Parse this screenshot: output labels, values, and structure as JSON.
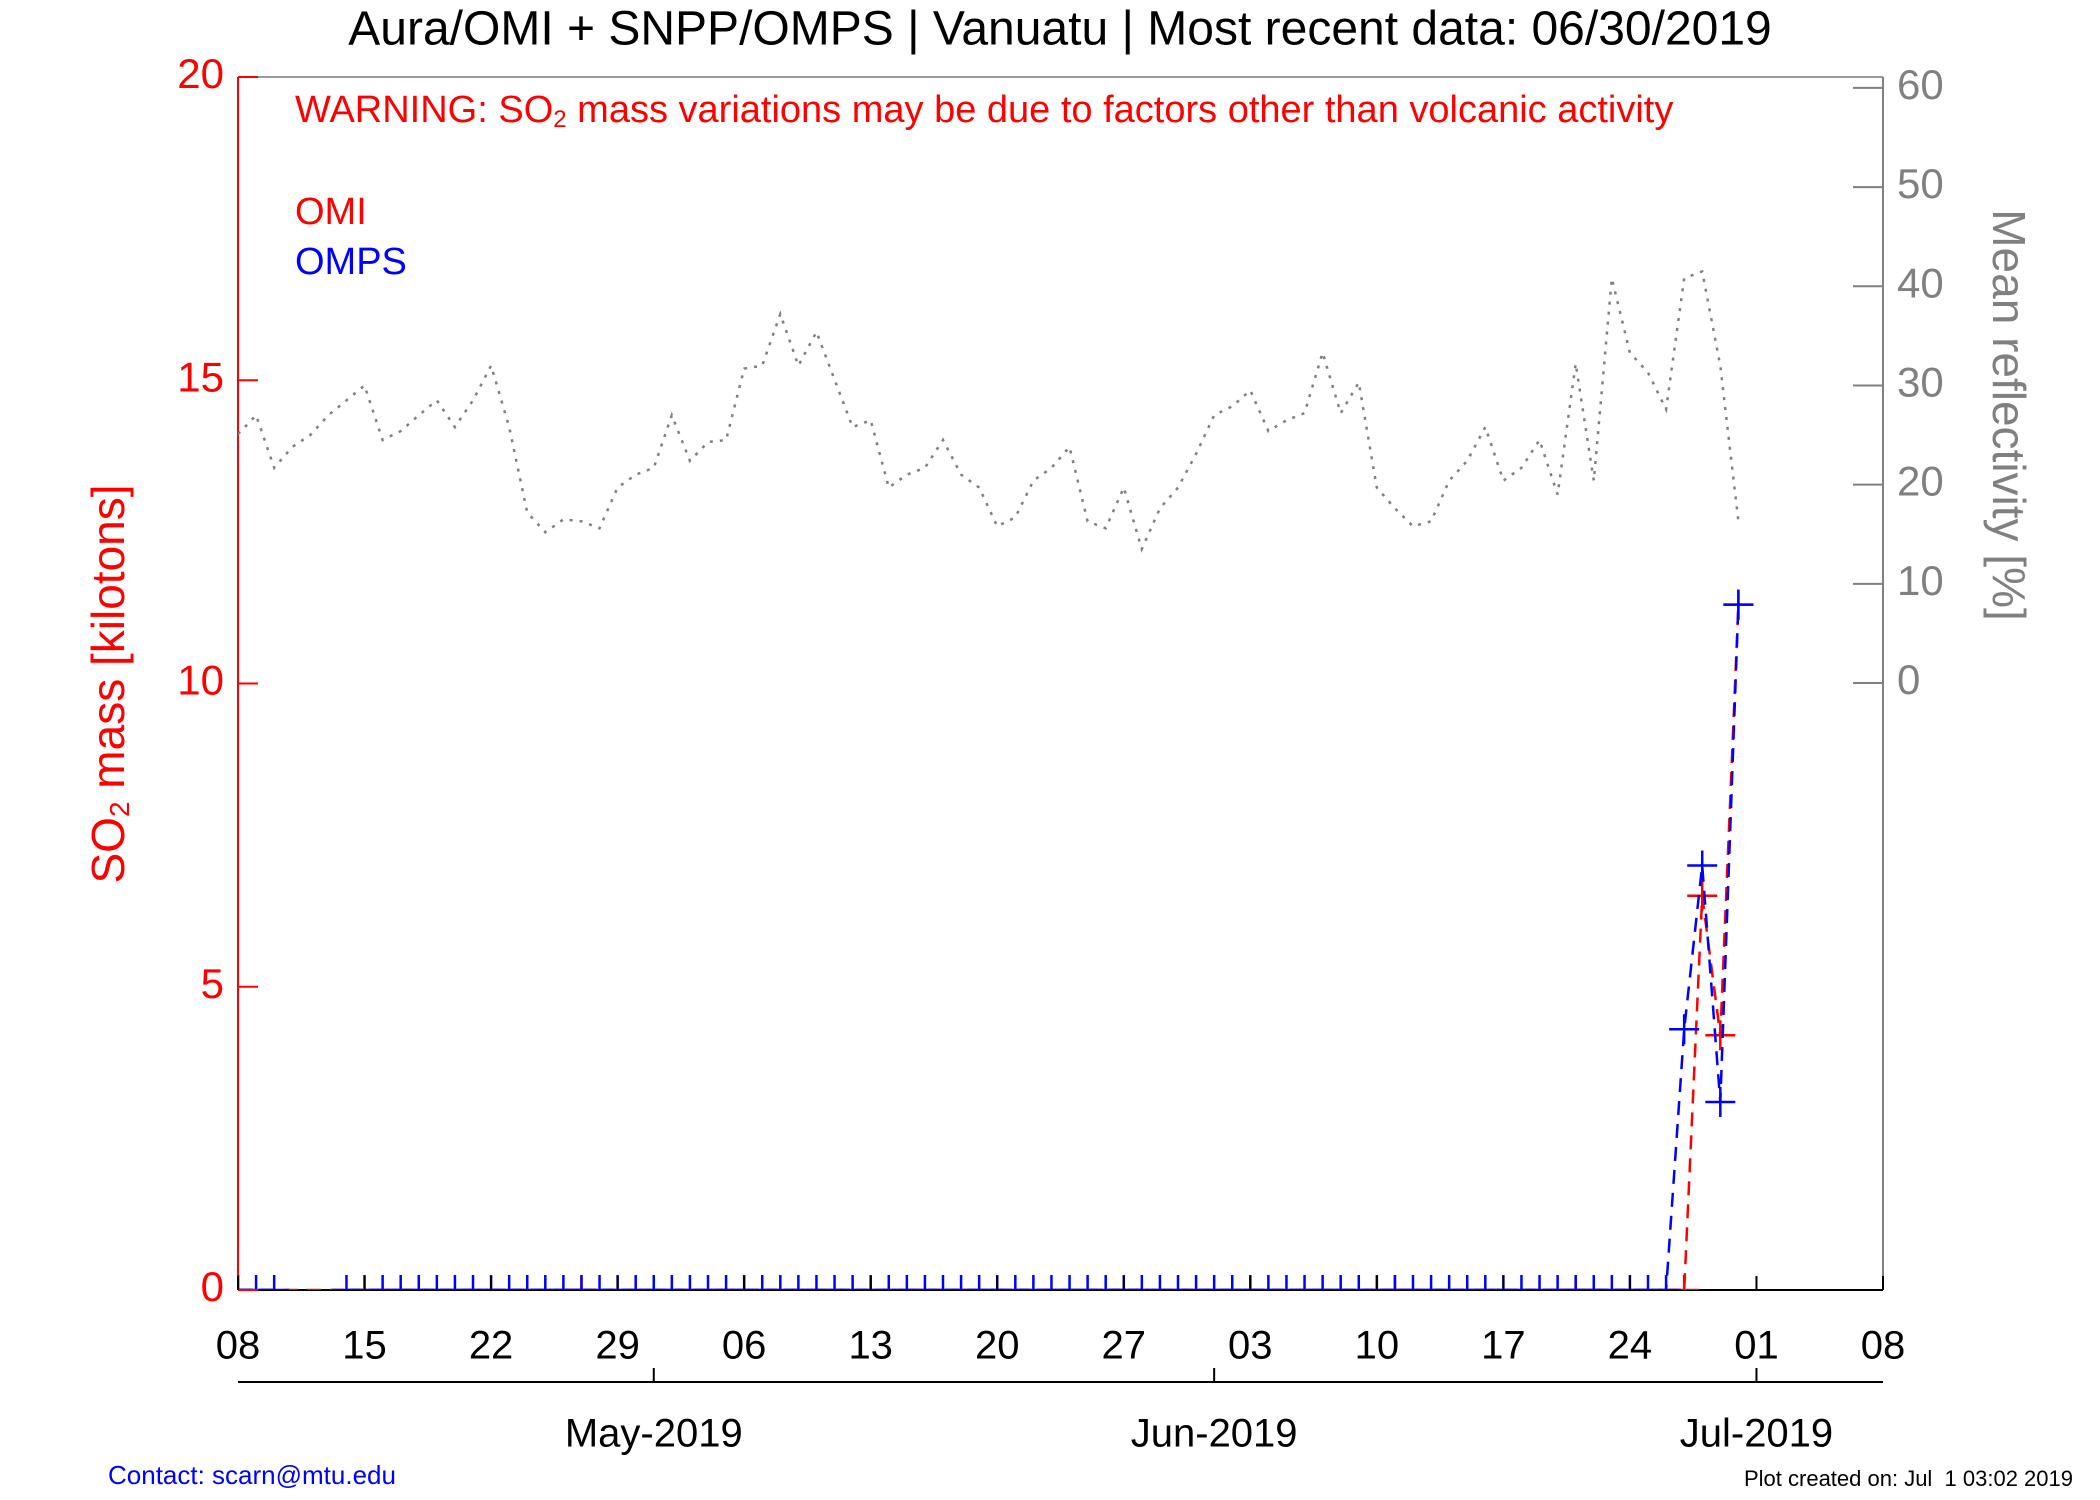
{
  "chart_data": {
    "type": "line",
    "title": "Aura/OMI + SNPP/OMPS | Vanuatu | Most recent data: 06/30/2019",
    "warning": [
      "WARNING: SO",
      "2",
      " mass variations may be due to factors other than volcanic activity"
    ],
    "y_label": [
      "SO",
      "2",
      " mass [kilotons]"
    ],
    "y2_label": "Mean reflectivity [%]",
    "contact": "Contact: scarn@mtu.edu",
    "created": "Plot created on: Jul  1 03:02 2019",
    "xlim": [
      "2019-04-08",
      "2019-07-08"
    ],
    "xticks": [
      {
        "value": "2019-04-08",
        "label": "08"
      },
      {
        "value": "2019-04-15",
        "label": "15"
      },
      {
        "value": "2019-04-22",
        "label": "22"
      },
      {
        "value": "2019-04-29",
        "label": "29"
      },
      {
        "value": "2019-05-06",
        "label": "06"
      },
      {
        "value": "2019-05-13",
        "label": "13"
      },
      {
        "value": "2019-05-20",
        "label": "20"
      },
      {
        "value": "2019-05-27",
        "label": "27"
      },
      {
        "value": "2019-06-03",
        "label": "03"
      },
      {
        "value": "2019-06-10",
        "label": "10"
      },
      {
        "value": "2019-06-17",
        "label": "17"
      },
      {
        "value": "2019-06-24",
        "label": "24"
      },
      {
        "value": "2019-07-01",
        "label": "01"
      },
      {
        "value": "2019-07-08",
        "label": "08"
      }
    ],
    "x2ticks": [
      {
        "value": "2019-05-01",
        "label": "May-2019"
      },
      {
        "value": "2019-06-01",
        "label": "Jun-2019"
      },
      {
        "value": "2019-07-01",
        "label": "Jul-2019"
      }
    ],
    "ylim": [
      0,
      20
    ],
    "yticks": [
      0,
      5,
      10,
      15,
      20
    ],
    "y2lim": [
      -61.2,
      61.1
    ],
    "y2ticks": [
      0,
      10,
      20,
      30,
      40,
      50,
      60
    ],
    "x": [
      "2019-04-08",
      "2019-04-09",
      "2019-04-10",
      "2019-04-11",
      "2019-04-12",
      "2019-04-13",
      "2019-04-14",
      "2019-04-15",
      "2019-04-16",
      "2019-04-17",
      "2019-04-18",
      "2019-04-19",
      "2019-04-20",
      "2019-04-21",
      "2019-04-22",
      "2019-04-23",
      "2019-04-24",
      "2019-04-25",
      "2019-04-26",
      "2019-04-27",
      "2019-04-28",
      "2019-04-29",
      "2019-04-30",
      "2019-05-01",
      "2019-05-02",
      "2019-05-03",
      "2019-05-04",
      "2019-05-05",
      "2019-05-06",
      "2019-05-07",
      "2019-05-08",
      "2019-05-09",
      "2019-05-10",
      "2019-05-11",
      "2019-05-12",
      "2019-05-13",
      "2019-05-14",
      "2019-05-15",
      "2019-05-16",
      "2019-05-17",
      "2019-05-18",
      "2019-05-19",
      "2019-05-20",
      "2019-05-21",
      "2019-05-22",
      "2019-05-23",
      "2019-05-24",
      "2019-05-25",
      "2019-05-26",
      "2019-05-27",
      "2019-05-28",
      "2019-05-29",
      "2019-05-30",
      "2019-05-31",
      "2019-06-01",
      "2019-06-02",
      "2019-06-03",
      "2019-06-04",
      "2019-06-05",
      "2019-06-06",
      "2019-06-07",
      "2019-06-08",
      "2019-06-09",
      "2019-06-10",
      "2019-06-11",
      "2019-06-12",
      "2019-06-13",
      "2019-06-14",
      "2019-06-15",
      "2019-06-16",
      "2019-06-17",
      "2019-06-18",
      "2019-06-19",
      "2019-06-20",
      "2019-06-21",
      "2019-06-22",
      "2019-06-23",
      "2019-06-24",
      "2019-06-25",
      "2019-06-26",
      "2019-06-27",
      "2019-06-28",
      "2019-06-29",
      "2019-06-30"
    ],
    "series": [
      {
        "name": "OMI",
        "color": "#ff0000",
        "x": [
          "2019-04-08",
          "2019-04-27",
          "2019-05-27",
          "2019-06-11",
          "2019-06-21",
          "2019-06-27",
          "2019-06-28",
          "2019-06-29",
          "2019-06-30"
        ],
        "values": [
          0,
          0,
          0,
          0,
          0,
          0,
          6.5,
          4.2,
          11.3
        ]
      },
      {
        "name": "OMPS",
        "color": "#0000ff",
        "values": [
          0,
          0,
          0,
          null,
          null,
          null,
          0,
          0,
          0,
          0,
          0,
          0,
          0,
          0,
          0,
          0,
          0,
          0,
          0,
          0,
          0,
          0,
          0,
          0,
          0,
          0,
          0,
          0,
          0,
          0,
          0,
          0,
          0,
          0,
          0,
          0,
          0,
          0,
          0,
          0,
          0,
          0,
          0,
          0,
          0,
          0,
          0,
          0,
          0,
          0,
          0,
          0,
          0,
          0,
          0,
          0,
          0,
          0,
          0,
          0,
          0,
          0,
          0,
          0,
          0,
          0,
          0,
          0,
          0,
          0,
          0,
          0,
          0,
          0,
          0,
          0,
          0,
          0,
          0,
          0,
          4.3,
          7.0,
          3.1,
          11.3
        ]
      },
      {
        "color": "#808080",
        "axis": "y2",
        "values": [
          25.1,
          27,
          21.7,
          23.8,
          25,
          27,
          28.5,
          30,
          24.5,
          25.4,
          27,
          28.5,
          25.8,
          28.5,
          32,
          25.8,
          17.2,
          15.2,
          16.5,
          16.3,
          15.6,
          19.7,
          21,
          21.7,
          27,
          22.4,
          24.3,
          24.5,
          31.7,
          32,
          37.2,
          32,
          35.4,
          30.6,
          25.8,
          26.5,
          19.7,
          21,
          21.7,
          24.5,
          21,
          19.7,
          15.8,
          16.7,
          20.4,
          21.7,
          23.8,
          16.3,
          15.6,
          19.7,
          13.5,
          17.6,
          19.7,
          23.1,
          27,
          27.9,
          29.5,
          25.4,
          26.5,
          27.2,
          33.3,
          27.2,
          30.3,
          19.7,
          17.6,
          15.8,
          16.3,
          20.4,
          22.4,
          25.8,
          20.4,
          21.7,
          24.5,
          19,
          32.2,
          20.4,
          40.8,
          33.3,
          31.3,
          27.6,
          40.8,
          41.5,
          32,
          16.3
        ]
      }
    ]
  }
}
